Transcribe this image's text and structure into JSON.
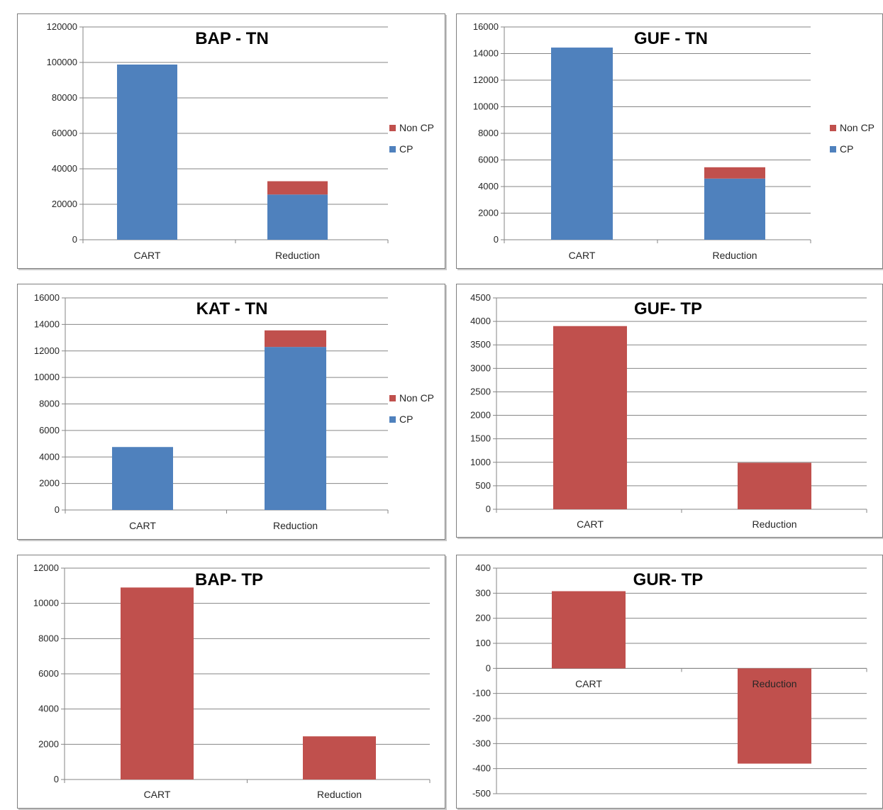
{
  "colors": {
    "cp": "#4f81bd",
    "non_cp": "#c0504d",
    "grid": "#868686",
    "axis": "#868686"
  },
  "chart_data": [
    {
      "type": "bar",
      "stacked": true,
      "title": "BAP - TN",
      "categories": [
        "CART",
        "Reduction"
      ],
      "series": [
        {
          "name": "CP",
          "values": [
            98800,
            25500
          ]
        },
        {
          "name": "Non CP",
          "values": [
            0,
            7500
          ]
        }
      ],
      "ylim": [
        0,
        120000
      ],
      "yticks": [
        0,
        20000,
        40000,
        60000,
        80000,
        100000,
        120000
      ],
      "legend": [
        "Non CP",
        "CP"
      ],
      "legend_position": "right",
      "grid": true
    },
    {
      "type": "bar",
      "stacked": true,
      "title": "GUF - TN",
      "categories": [
        "CART",
        "Reduction"
      ],
      "series": [
        {
          "name": "CP",
          "values": [
            14450,
            4600
          ]
        },
        {
          "name": "Non CP",
          "values": [
            0,
            850
          ]
        }
      ],
      "ylim": [
        0,
        16000
      ],
      "yticks": [
        0,
        2000,
        4000,
        6000,
        8000,
        10000,
        12000,
        14000,
        16000
      ],
      "legend": [
        "Non CP",
        "CP"
      ],
      "legend_position": "right",
      "grid": true
    },
    {
      "type": "bar",
      "stacked": true,
      "title": "KAT - TN",
      "categories": [
        "CART",
        "Reduction"
      ],
      "series": [
        {
          "name": "CP",
          "values": [
            4750,
            12300
          ]
        },
        {
          "name": "Non CP",
          "values": [
            0,
            1250
          ]
        }
      ],
      "ylim": [
        0,
        16000
      ],
      "yticks": [
        0,
        2000,
        4000,
        6000,
        8000,
        10000,
        12000,
        14000,
        16000
      ],
      "legend": [
        "Non CP",
        "CP"
      ],
      "legend_position": "right",
      "grid": true
    },
    {
      "type": "bar",
      "title": "GUF- TP",
      "categories": [
        "CART",
        "Reduction"
      ],
      "series": [
        {
          "values": [
            3900,
            990
          ]
        }
      ],
      "ylim": [
        0,
        4500
      ],
      "yticks": [
        0,
        500,
        1000,
        1500,
        2000,
        2500,
        3000,
        3500,
        4000,
        4500
      ],
      "grid": true
    },
    {
      "type": "bar",
      "title": "BAP- TP",
      "categories": [
        "CART",
        "Reduction"
      ],
      "series": [
        {
          "values": [
            10900,
            2450
          ]
        }
      ],
      "ylim": [
        0,
        12000
      ],
      "yticks": [
        0,
        2000,
        4000,
        6000,
        8000,
        10000,
        12000
      ],
      "grid": true
    },
    {
      "type": "bar",
      "title": "GUR- TP",
      "categories": [
        "CART",
        "Reduction"
      ],
      "series": [
        {
          "values": [
            308,
            -380
          ]
        }
      ],
      "ylim": [
        -500,
        400
      ],
      "yticks": [
        -500,
        -400,
        -300,
        -200,
        -100,
        0,
        100,
        200,
        300,
        400
      ],
      "grid": true
    }
  ]
}
